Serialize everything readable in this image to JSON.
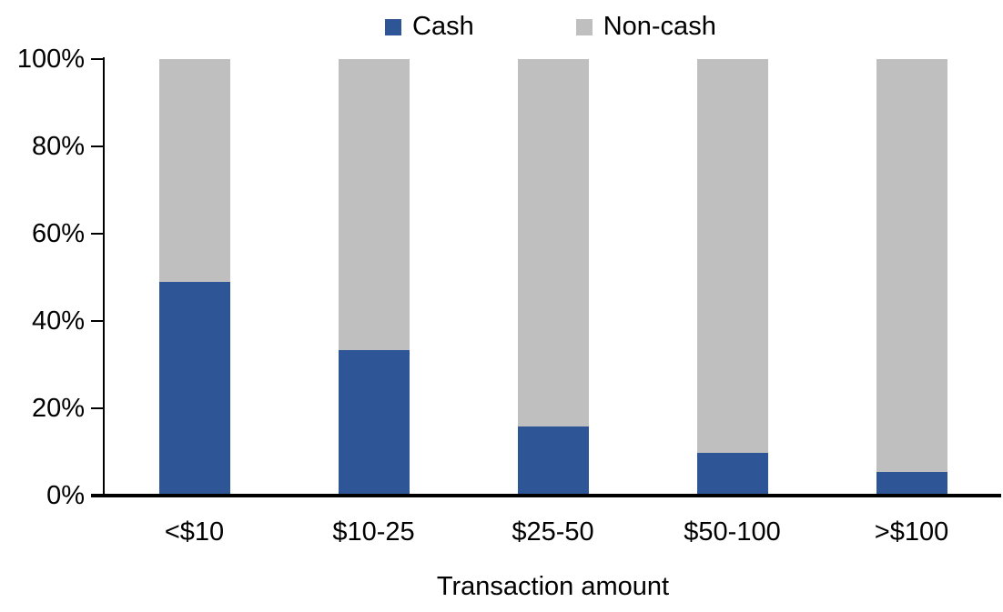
{
  "chart_data": {
    "type": "bar",
    "stacked": true,
    "percent_stacked": true,
    "categories": [
      "<$10",
      "$10-25",
      "$25-50",
      "$50-100",
      ">$100"
    ],
    "series": [
      {
        "name": "Cash",
        "color": "#2E5596",
        "values": [
          49,
          33.3,
          15.8,
          9.8,
          5.4
        ]
      },
      {
        "name": "Non-cash",
        "color": "#BFBFBF",
        "values": [
          51,
          66.7,
          84.2,
          90.2,
          94.6
        ]
      }
    ],
    "title": "",
    "xlabel": "Transaction amount",
    "ylabel": "",
    "ylim": [
      0,
      100
    ],
    "ytick_values": [
      0,
      20,
      40,
      60,
      80,
      100
    ],
    "ytick_labels": [
      "0%",
      "20%",
      "40%",
      "60%",
      "80%",
      "100%"
    ],
    "grid": false,
    "legend_position": "top-center",
    "axis_color": "#000000"
  }
}
